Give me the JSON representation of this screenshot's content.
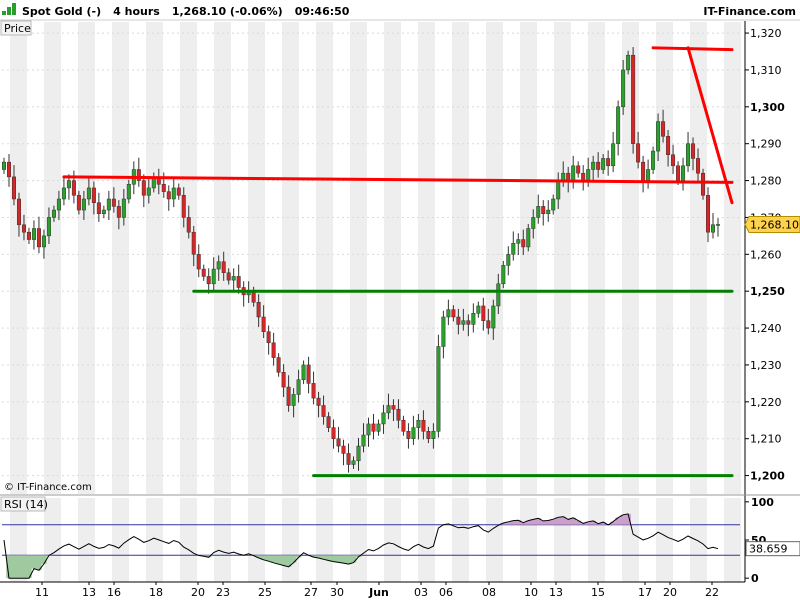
{
  "header": {
    "symbol": "Spot Gold (-)",
    "timeframe": "4 hours",
    "last_quote": "1,268.10 (-0.06%)",
    "time": "09:46:50",
    "brand": "IT-Finance.com"
  },
  "price_panel": {
    "label": "Price",
    "watermark": "© IT-Finance.com"
  },
  "rsi_panel": {
    "label": "RSI (14)"
  },
  "x_labels": [
    "11",
    "13",
    "16",
    "18",
    "20",
    "23",
    "25",
    "27",
    "30",
    "Jun",
    "03",
    "06",
    "08",
    "10",
    "13",
    "15",
    "17",
    "20",
    "22"
  ],
  "colors": {
    "bull_candle": "#2ca02c",
    "bear_candle": "#d62728",
    "resistance": "#ff0000",
    "support": "#008000",
    "rsi_line": "#000000",
    "rsi_overbought_fill": "#c9a0c9",
    "rsi_oversold_fill": "#9fc99f",
    "last_price_box": "#ffd24d"
  },
  "chart_data": [
    {
      "type": "candlestick",
      "ylim": [
        1195,
        1323
      ],
      "yticks": [
        1200,
        1210,
        1220,
        1230,
        1240,
        1250,
        1260,
        1270,
        1280,
        1290,
        1300,
        1310,
        1320
      ],
      "ytick_labels": [
        "1,200",
        "1,210",
        "1,220",
        "1,230",
        "1,240",
        "1,250",
        "1,260",
        "1,270",
        "1,280",
        "1,290",
        "1,300",
        "1,310",
        "1,320"
      ],
      "bold_ticks": [
        1200,
        1250,
        1300
      ],
      "last_price": 1268.1,
      "last_price_label": "1,268.10",
      "closes": [
        1285,
        1281,
        1275,
        1268,
        1266,
        1264,
        1267,
        1262,
        1265,
        1270,
        1272,
        1275,
        1278,
        1280,
        1276,
        1272,
        1275,
        1278,
        1274,
        1271,
        1272,
        1275,
        1273,
        1270,
        1275,
        1279,
        1283,
        1280,
        1276,
        1278,
        1281,
        1279,
        1277,
        1275,
        1278,
        1276,
        1270,
        1266,
        1260,
        1256,
        1254,
        1252,
        1256,
        1258,
        1255,
        1253,
        1254,
        1251,
        1249,
        1250,
        1247,
        1243,
        1239,
        1236,
        1232,
        1228,
        1224,
        1219,
        1222,
        1226,
        1230,
        1225,
        1221,
        1219,
        1216,
        1213,
        1210,
        1208,
        1206,
        1203,
        1204,
        1208,
        1211,
        1214,
        1212,
        1214,
        1217,
        1219,
        1218,
        1215,
        1212,
        1210,
        1213,
        1215,
        1212,
        1210,
        1212,
        1235,
        1243,
        1245,
        1243,
        1241,
        1242,
        1241,
        1244,
        1246,
        1242,
        1240,
        1246,
        1252,
        1257,
        1260,
        1263,
        1264,
        1262,
        1267,
        1270,
        1273,
        1271,
        1272,
        1275,
        1280,
        1282,
        1280,
        1284,
        1282,
        1280,
        1283,
        1285,
        1283,
        1286,
        1284,
        1290,
        1300,
        1310,
        1314,
        1290,
        1285,
        1280,
        1283,
        1288,
        1296,
        1292,
        1287,
        1284,
        1280,
        1284,
        1290,
        1286,
        1282,
        1276,
        1266,
        1268,
        1268.1
      ],
      "annotations": {
        "resistance_line": [
          {
            "x": 12,
            "y": 1281
          },
          {
            "x": 160,
            "y": 1279.5
          }
        ],
        "peak_resistance_line": [
          {
            "x": 130,
            "y": 1316
          },
          {
            "x": 160,
            "y": 1315.5
          }
        ],
        "downtrend_line": [
          {
            "x": 137,
            "y": 1316
          },
          {
            "x": 160,
            "y": 1274
          }
        ],
        "support_1250": [
          {
            "x": 38,
            "y": 1250
          },
          {
            "x": 160,
            "y": 1250
          }
        ],
        "support_1200": [
          {
            "x": 62,
            "y": 1200
          },
          {
            "x": 160,
            "y": 1200
          }
        ]
      }
    },
    {
      "type": "line",
      "name": "RSI (14)",
      "ylim": [
        -5,
        105
      ],
      "yticks": [
        0,
        50,
        100
      ],
      "ytick_labels": [
        "0",
        "50",
        "100"
      ],
      "overbought": 70,
      "oversold": 30,
      "last_value": 38.659,
      "last_value_label": "38.659"
    }
  ]
}
